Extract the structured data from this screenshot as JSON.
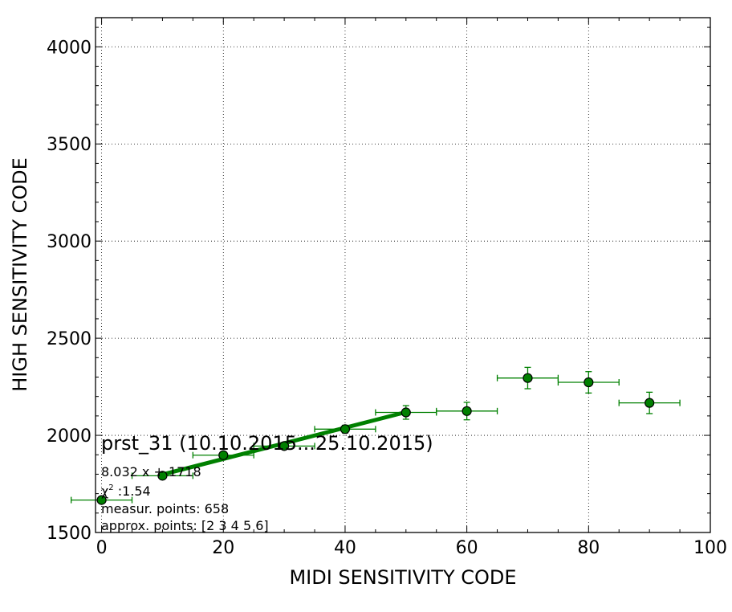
{
  "chart_data": {
    "type": "scatter",
    "title": "prst_31 (10.10.2015...25.10.2015)",
    "xlabel": "MIDI SENSITIVITY CODE",
    "ylabel": "HIGH SENSITIVITY CODE",
    "xlim": [
      -1,
      100
    ],
    "ylim": [
      1500,
      4150
    ],
    "xticks": [
      0,
      20,
      40,
      60,
      80,
      100
    ],
    "yticks": [
      1500,
      2000,
      2500,
      3000,
      3500,
      4000
    ],
    "grid": true,
    "colors": {
      "series": "#008000",
      "marker_fill": "#008000",
      "marker_edge": "#000000"
    },
    "points": [
      {
        "x": 0,
        "y": 1667,
        "xerr": 5,
        "yerr": 8
      },
      {
        "x": 10,
        "y": 1792,
        "xerr": 5,
        "yerr": 12
      },
      {
        "x": 20,
        "y": 1898,
        "xerr": 5,
        "yerr": 12
      },
      {
        "x": 30,
        "y": 1945,
        "xerr": 5,
        "yerr": 15
      },
      {
        "x": 40,
        "y": 2032,
        "xerr": 5,
        "yerr": 20
      },
      {
        "x": 50,
        "y": 2118,
        "xerr": 5,
        "yerr": 35
      },
      {
        "x": 60,
        "y": 2125,
        "xerr": 5,
        "yerr": 45
      },
      {
        "x": 70,
        "y": 2295,
        "xerr": 5,
        "yerr": 55
      },
      {
        "x": 80,
        "y": 2273,
        "xerr": 5,
        "yerr": 55
      },
      {
        "x": 90,
        "y": 2167,
        "xerr": 5,
        "yerr": 55
      }
    ],
    "fit": {
      "slope": 8.032,
      "intercept": 1718,
      "x_range": [
        10,
        50
      ]
    },
    "annotations": {
      "equation": "8.032 x + 1718",
      "chi2_symbol": "χ",
      "chi2_exp": "2",
      "chi2_value": " :1.54",
      "measurement_points": "measur. points: 658",
      "approx_points": "approx. points: [2 3 4 5 6]"
    }
  }
}
